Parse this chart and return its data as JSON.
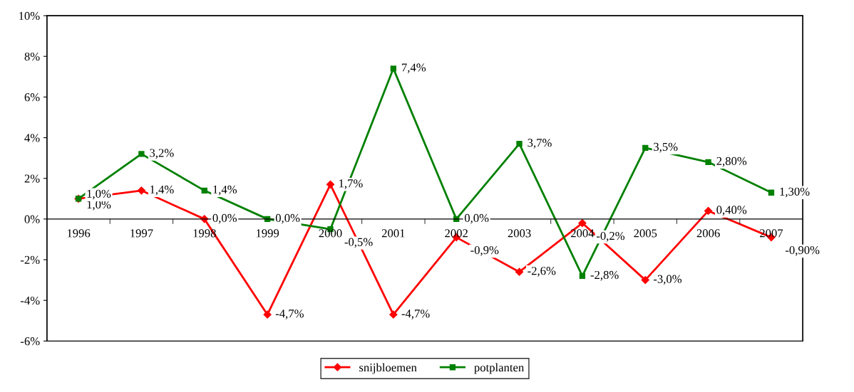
{
  "chart_data": {
    "type": "line",
    "categories": [
      "1996",
      "1997",
      "1998",
      "1999",
      "2000",
      "2001",
      "2002",
      "2003",
      "2004",
      "2005",
      "2006",
      "2007"
    ],
    "series": [
      {
        "name": "snijbloemen",
        "color": "#ff0000",
        "marker": "diamond",
        "values": [
          1.0,
          1.4,
          0.0,
          -4.7,
          1.7,
          -4.7,
          -0.9,
          -2.6,
          -0.2,
          -3.0,
          0.4,
          -0.9
        ],
        "value_labels": [
          "1,0%",
          "1,4%",
          "0,0%",
          "-4,7%",
          "1,7%",
          "-4,7%",
          "-0,9%",
          "-2,6%",
          "-0,2%",
          "-3,0%",
          "0,40%",
          "-0,90%"
        ]
      },
      {
        "name": "potplanten",
        "color": "#008000",
        "marker": "square",
        "values": [
          1.0,
          3.2,
          1.4,
          0.0,
          -0.5,
          7.4,
          0.0,
          3.7,
          -2.8,
          3.5,
          2.8,
          1.3
        ],
        "value_labels": [
          "1,0%",
          "3,2%",
          "1,4%",
          "0,0%",
          "-0,5%",
          "7,4%",
          "0,0%",
          "3,7%",
          "-2,8%",
          "3,5%",
          "2,80%",
          "1,30%"
        ]
      }
    ],
    "ylim": [
      -6,
      10
    ],
    "yticks": [
      {
        "value": -6,
        "label": "-6%"
      },
      {
        "value": -4,
        "label": "-4%"
      },
      {
        "value": -2,
        "label": "-2%"
      },
      {
        "value": 0,
        "label": "0%"
      },
      {
        "value": 2,
        "label": "2%"
      },
      {
        "value": 4,
        "label": "4%"
      },
      {
        "value": 6,
        "label": "6%"
      },
      {
        "value": 8,
        "label": "8%"
      },
      {
        "value": 10,
        "label": "10%"
      }
    ],
    "legend": "bottom",
    "grid": false
  }
}
